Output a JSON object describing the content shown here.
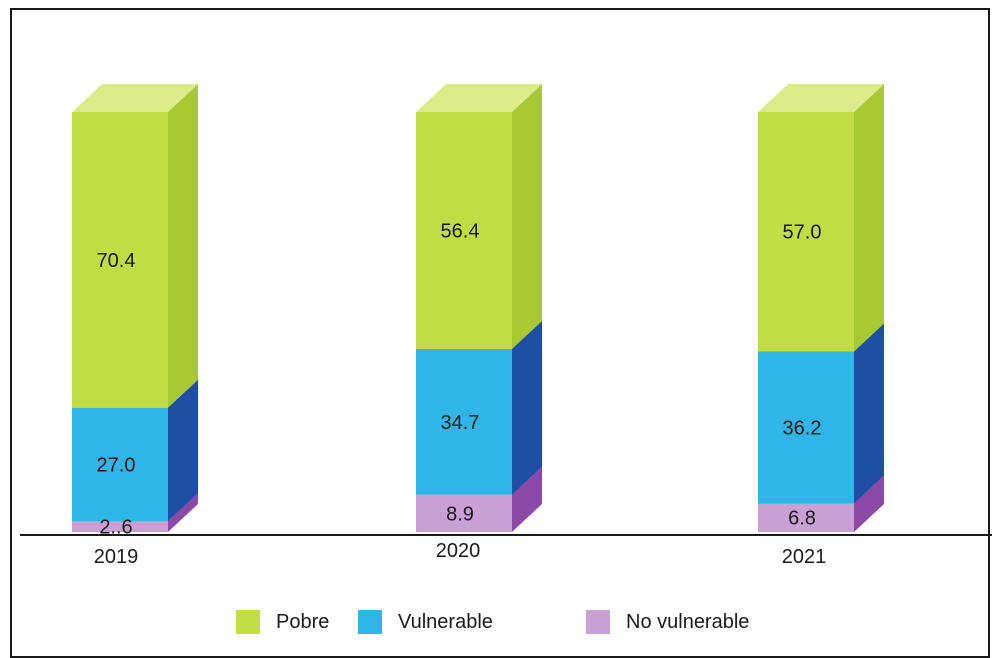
{
  "chart_data": {
    "type": "bar",
    "stacked": true,
    "categories": [
      "2019",
      "2020",
      "2021"
    ],
    "series": [
      {
        "name": "No vulnerable",
        "values": [
          2.6,
          8.9,
          6.8
        ],
        "labels": [
          "2..6",
          "8.9",
          "6.8"
        ],
        "color": "#c9a0d6"
      },
      {
        "name": "Vulnerable",
        "values": [
          27.0,
          34.7,
          36.2
        ],
        "labels": [
          "27.0",
          "34.7",
          "36.2"
        ],
        "color": "#2fb6e6"
      },
      {
        "name": "Pobre",
        "values": [
          70.4,
          56.4,
          57.0
        ],
        "labels": [
          "70.4",
          "56.4",
          "57.0"
        ],
        "color": "#c2dc46"
      }
    ],
    "legend": [
      "Pobre",
      "Vulnerable",
      "No vulnerable"
    ],
    "legend_position": "bottom",
    "ylim": [
      0,
      100
    ],
    "grid": false
  },
  "colors": {
    "pobre_front": "#c2dc46",
    "pobre_side": "#a9c934",
    "pobre_top": "#dceb8a",
    "vuln_front": "#2fb6e6",
    "vuln_side": "#1e4fa3",
    "vuln_top": "#7fcf8a",
    "novuln_front": "#c9a0d6",
    "novuln_side": "#8b4aa6",
    "axis": "#1a1a1a"
  }
}
